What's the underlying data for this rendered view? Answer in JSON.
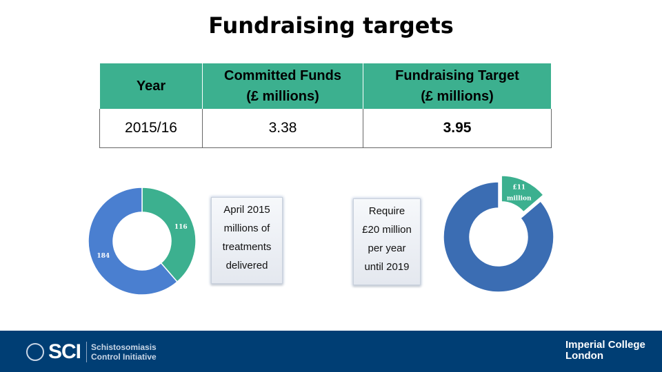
{
  "title": "Fundraising targets",
  "table": {
    "headers": [
      {
        "line1": "Year",
        "line2": ""
      },
      {
        "line1": "Committed Funds",
        "line2": "(£ millions)"
      },
      {
        "line1": "Fundraising Target",
        "line2": "(£ millions)"
      }
    ],
    "row": {
      "year": "2015/16",
      "committed": "3.38",
      "target": "3.95"
    }
  },
  "textbox_left": [
    "April 2015",
    "millions of",
    "treatments",
    "delivered"
  ],
  "textbox_right": [
    "Require",
    "£20 million",
    "per year",
    "until 2019"
  ],
  "chart_data": [
    {
      "type": "pie",
      "donut": true,
      "slices": [
        {
          "label": "116",
          "value": 116,
          "color": "#3cb08f"
        },
        {
          "label": "184",
          "value": 184,
          "color": "#4a7fd0"
        }
      ]
    },
    {
      "type": "pie",
      "donut": true,
      "slices": [
        {
          "label": "£11 million",
          "value": 11,
          "color": "#3cb08f",
          "exploded": true
        },
        {
          "label": "",
          "value": 69,
          "color": "#3b6db3"
        }
      ]
    }
  ],
  "footer": {
    "sci_abbr": "SCI",
    "sci_line1": "Schistosomiasis",
    "sci_line2": "Control Initiative",
    "imperial_line1": "Imperial College",
    "imperial_line2": "London"
  },
  "colors": {
    "accent": "#3cb08f",
    "footer": "#003e74",
    "donut_blue": "#4a7fd0"
  }
}
